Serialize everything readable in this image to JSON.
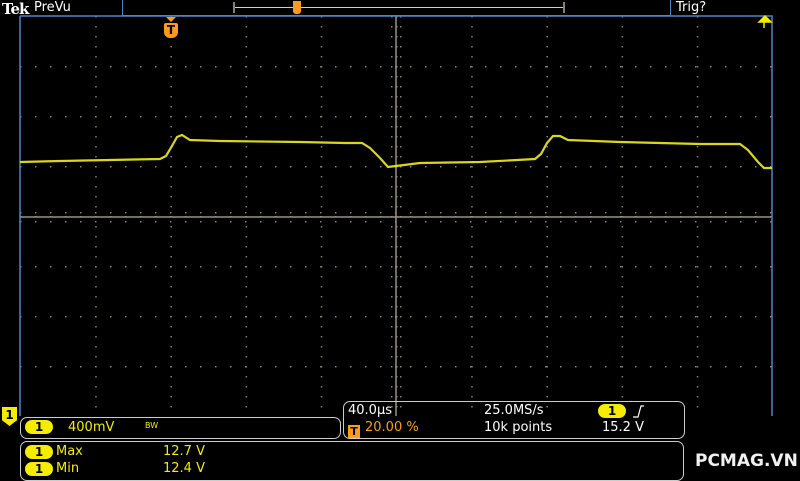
{
  "header": {
    "brand": "Tek",
    "mode": "PreVu",
    "trigger_status": "Trig?"
  },
  "colors": {
    "channel1": "#f5ec00",
    "trigger": "#ff9a1a",
    "graticule_border": "#4a86c8"
  },
  "channel_marker": "1",
  "trigger_marker": "T",
  "channel_info": {
    "channel": "1",
    "scale": "400mV",
    "bandwidth": "BW"
  },
  "timebase": {
    "scale": "40.0µs",
    "sample_rate": "25.0MS/s",
    "trigger_position": "20.00 %",
    "record_length": "10k points",
    "trigger_channel": "1",
    "trigger_slope": "rising-edge",
    "trigger_level": "15.2 V"
  },
  "measurements": [
    {
      "channel": "1",
      "name": "Max",
      "value": "12.7 V"
    },
    {
      "channel": "1",
      "name": "Min",
      "value": "12.4 V"
    }
  ],
  "watermark": "PCMAG.VN"
}
